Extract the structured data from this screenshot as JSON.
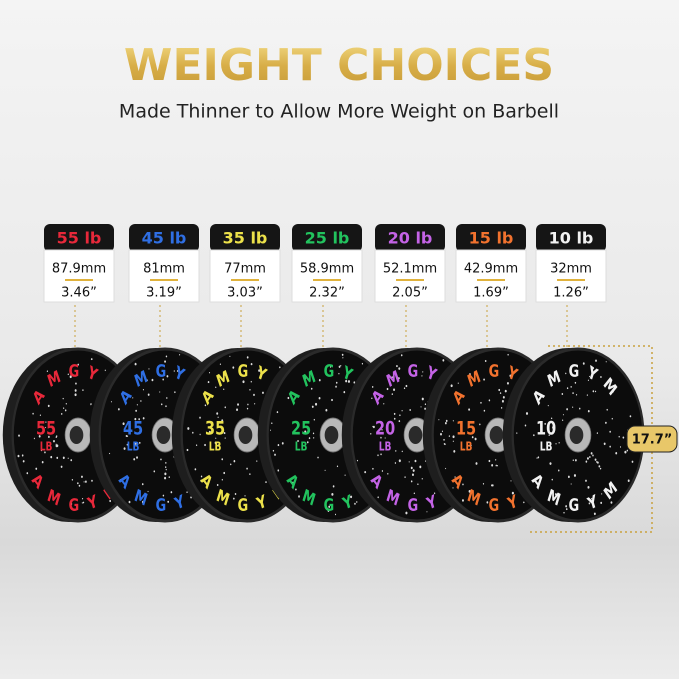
{
  "header": {
    "title": "WEIGHT CHOICES",
    "subtitle": "Made Thinner to Allow More Weight on Barbell"
  },
  "brand": "AMGYM",
  "diameter": "17.7”",
  "plates": [
    {
      "weight": "55 lb",
      "thickness_mm": "87.9mm",
      "thickness_in": "3.46”",
      "number": "55",
      "unit": "LB",
      "color": "#e8283a"
    },
    {
      "weight": "45 lb",
      "thickness_mm": "81mm",
      "thickness_in": "3.19”",
      "number": "45",
      "unit": "LB",
      "color": "#2f6fe4"
    },
    {
      "weight": "35 lb",
      "thickness_mm": "77mm",
      "thickness_in": "3.03”",
      "number": "35",
      "unit": "LB",
      "color": "#ece14a"
    },
    {
      "weight": "25 lb",
      "thickness_mm": "58.9mm",
      "thickness_in": "2.32”",
      "number": "25",
      "unit": "LB",
      "color": "#22c35e"
    },
    {
      "weight": "20 lb",
      "thickness_mm": "52.1mm",
      "thickness_in": "2.05”",
      "number": "20",
      "unit": "LB",
      "color": "#c463e6"
    },
    {
      "weight": "15 lb",
      "thickness_mm": "42.9mm",
      "thickness_in": "1.69”",
      "number": "15",
      "unit": "LB",
      "color": "#f2722e"
    },
    {
      "weight": "10 lb",
      "thickness_mm": "32mm",
      "thickness_in": "1.26”",
      "number": "10",
      "unit": "LB",
      "color": "#f2f2f2"
    }
  ]
}
